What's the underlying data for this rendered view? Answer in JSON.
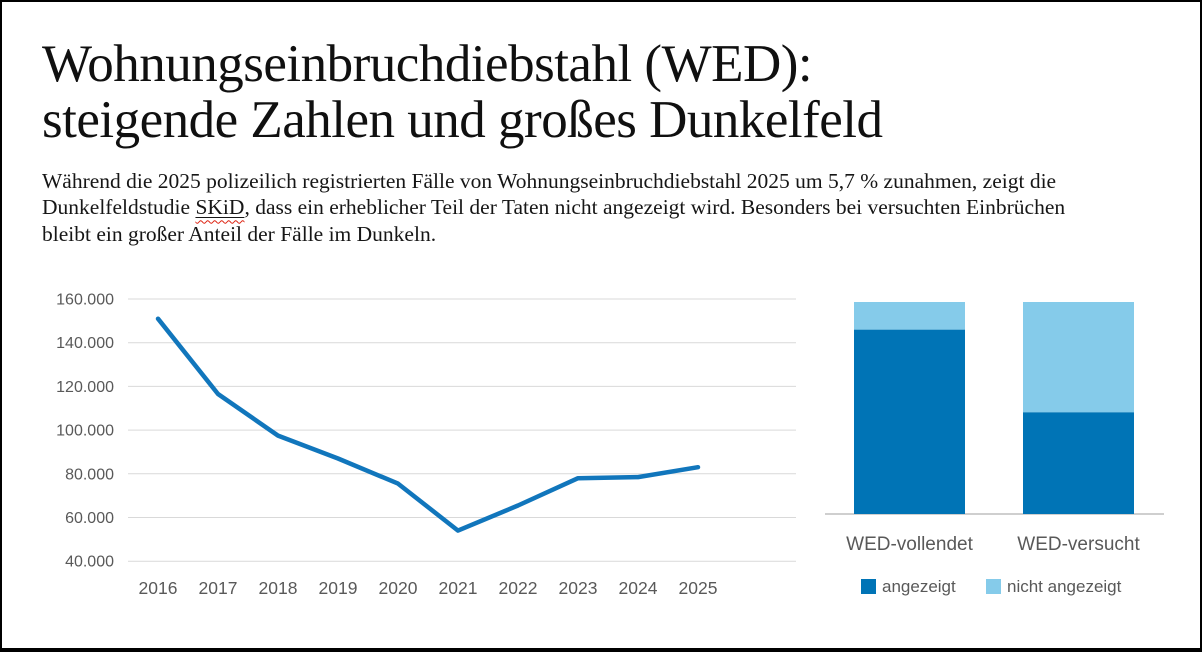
{
  "page": {
    "title_line1": "Wohnungseinbruchdiebstahl (WED):",
    "title_line2": "steigende Zahlen und großes Dunkelfeld",
    "intro": {
      "text_before": "Während die 2025 polizeilich registrierten Fälle von Wohnungseinbruchdiebstahl 2025 um 5,7 % zunahmen, zeigt die Dunkelfeldstudie ",
      "link_text": "SKiD",
      "text_after": ", dass ein erheblicher Teil der Taten nicht angezeigt wird. Besonders bei versuchten Einbrüchen bleibt ein großer Anteil der Fälle im Dunkeln."
    }
  },
  "colors": {
    "line_blue": "#1176BC",
    "bar_dark_blue": "#0074B6",
    "bar_light_blue": "#85CBEA",
    "gridline_gray": "#d9d9d9",
    "axis_gray": "#bfbfbf",
    "label_gray": "#595959"
  },
  "chart_data": [
    {
      "type": "line",
      "x": [
        2016,
        2017,
        2018,
        2019,
        2020,
        2021,
        2022,
        2023,
        2024,
        2025
      ],
      "series": [
        {
          "values": [
            151000,
            116500,
            97500,
            87000,
            75500,
            54000,
            65500,
            78000,
            78500,
            83000
          ]
        }
      ],
      "ylim": [
        40000,
        160000
      ],
      "ytick_step": 20000,
      "yticks": [
        {
          "value": 40000,
          "label": "40.000"
        },
        {
          "value": 60000,
          "label": "60.000"
        },
        {
          "value": 80000,
          "label": "80.000"
        },
        {
          "value": 100000,
          "label": "100.000"
        },
        {
          "value": 120000,
          "label": "120.000"
        },
        {
          "value": 140000,
          "label": "140.000"
        },
        {
          "value": 160000,
          "label": "160.000"
        }
      ],
      "grid": true,
      "legend": "none",
      "line_color": "#1176BC"
    },
    {
      "type": "bar",
      "stacked": true,
      "unit": "percent",
      "categories": [
        "WED-vollendet",
        "WED-versucht"
      ],
      "series": [
        {
          "name": "angezeigt",
          "values": [
            87,
            48
          ],
          "color": "#0074B6"
        },
        {
          "name": "nicht angezeigt",
          "values": [
            13,
            52
          ],
          "color": "#85CBEA"
        }
      ],
      "ylim": [
        0,
        100
      ],
      "grid": false,
      "legend_position": "bottom"
    }
  ]
}
